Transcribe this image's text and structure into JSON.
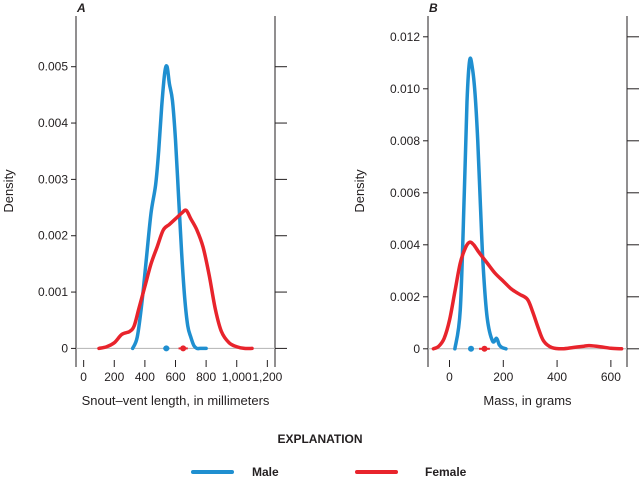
{
  "colors": {
    "male": "#1f8fd0",
    "female": "#e8242c",
    "axis": "#231f20",
    "baseline": "#b3b3b3"
  },
  "explanation": {
    "title": "EXPLANATION",
    "items": [
      {
        "label": "Male",
        "color": "#1f8fd0"
      },
      {
        "label": "Female",
        "color": "#e8242c"
      }
    ]
  },
  "chart_data": [
    {
      "type": "line",
      "panel": "A",
      "xlabel": "Snout–vent length, in millimeters",
      "ylabel": "Density",
      "xlim": [
        -50,
        1250
      ],
      "ylim": [
        -0.00033,
        0.0059
      ],
      "xticks": [
        0,
        200,
        400,
        600,
        800,
        1000,
        1200
      ],
      "xtick_labels": [
        "0",
        "200",
        "400",
        "600",
        "800",
        "1,000",
        "1,200"
      ],
      "yticks": [
        0,
        0.001,
        0.002,
        0.003,
        0.004,
        0.005
      ],
      "ytick_labels": [
        "0",
        "0.001",
        "0.002",
        "0.003",
        "0.004",
        "0.005"
      ],
      "grid": false,
      "series": [
        {
          "name": "Male",
          "color": "#1f8fd0",
          "x": [
            320,
            350,
            380,
            410,
            440,
            470,
            490,
            510,
            530,
            545,
            560,
            580,
            600,
            620,
            640,
            660,
            680,
            700,
            720,
            740,
            760,
            780,
            800
          ],
          "y": [
            0,
            0.0002,
            0.0008,
            0.0016,
            0.0024,
            0.0029,
            0.0035,
            0.0043,
            0.0049,
            0.005,
            0.0047,
            0.0044,
            0.0037,
            0.0027,
            0.0017,
            0.0009,
            0.0004,
            0.0002,
            5e-05,
            0,
            0,
            0,
            0
          ],
          "summary_marker": {
            "x": 540,
            "range": [
              520,
              560
            ]
          }
        },
        {
          "name": "Female",
          "color": "#e8242c",
          "x": [
            100,
            150,
            200,
            250,
            300,
            330,
            360,
            400,
            440,
            480,
            520,
            560,
            600,
            640,
            670,
            700,
            740,
            780,
            820,
            860,
            900,
            950,
            1000,
            1050,
            1100
          ],
          "y": [
            0,
            3e-05,
            0.0001,
            0.00025,
            0.0003,
            0.0004,
            0.0007,
            0.0011,
            0.0015,
            0.0018,
            0.0021,
            0.0022,
            0.0023,
            0.0024,
            0.00245,
            0.0023,
            0.0021,
            0.0018,
            0.0013,
            0.0007,
            0.0003,
            0.0001,
            3e-05,
            0,
            0
          ],
          "summary_marker": {
            "x": 650,
            "range": [
              620,
              680
            ]
          }
        }
      ]
    },
    {
      "type": "line",
      "panel": "B",
      "xlabel": "Mass, in grams",
      "ylabel": "Density",
      "xlim": [
        -80,
        660
      ],
      "ylim": [
        -0.0007,
        0.0128
      ],
      "xticks": [
        0,
        200,
        400,
        600
      ],
      "xtick_labels": [
        "0",
        "200",
        "400",
        "600"
      ],
      "yticks": [
        0,
        0.002,
        0.004,
        0.006,
        0.008,
        0.01,
        0.012
      ],
      "ytick_labels": [
        "0",
        "0.002",
        "0.004",
        "0.006",
        "0.008",
        "0.010",
        "0.012"
      ],
      "grid": false,
      "series": [
        {
          "name": "Male",
          "color": "#1f8fd0",
          "x": [
            20,
            40,
            55,
            65,
            75,
            85,
            95,
            105,
            115,
            125,
            140,
            160,
            175,
            185,
            195,
            210
          ],
          "y": [
            0,
            0.0015,
            0.006,
            0.0095,
            0.0111,
            0.0108,
            0.0098,
            0.008,
            0.0055,
            0.0032,
            0.0012,
            0.0003,
            0.0004,
            0.00015,
            5e-05,
            0
          ],
          "summary_marker": {
            "x": 80,
            "range": [
              70,
              90
            ]
          }
        },
        {
          "name": "Female",
          "color": "#e8242c",
          "x": [
            -60,
            -40,
            -20,
            0,
            20,
            40,
            60,
            75,
            90,
            110,
            140,
            170,
            200,
            230,
            260,
            290,
            310,
            330,
            350,
            380,
            420,
            460,
            500,
            520,
            560,
            600,
            640
          ],
          "y": [
            0,
            0.0001,
            0.0004,
            0.0011,
            0.0022,
            0.0033,
            0.0039,
            0.0041,
            0.004,
            0.0037,
            0.0033,
            0.0029,
            0.0026,
            0.0023,
            0.0021,
            0.0019,
            0.0014,
            0.0008,
            0.0003,
            5e-05,
            0,
            5e-05,
            0.0001,
            0.00012,
            8e-05,
            2e-05,
            0
          ],
          "summary_marker": {
            "x": 130,
            "range": [
              110,
              150
            ]
          }
        }
      ]
    }
  ]
}
